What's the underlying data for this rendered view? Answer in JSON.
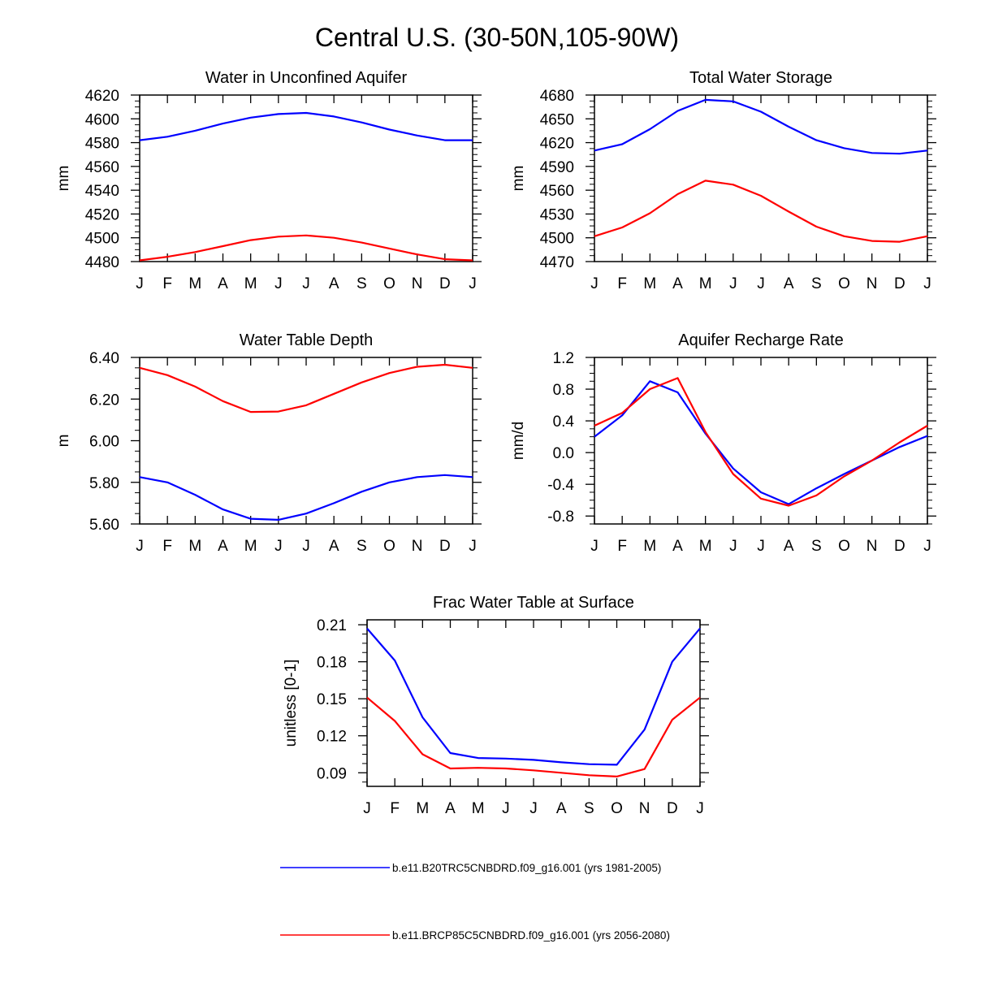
{
  "figure": {
    "title": "Central U.S. (30-50N,105-90W)"
  },
  "chart_data": [
    {
      "type": "line",
      "title": "Water in Unconfined Aquifer",
      "xlabel": "",
      "ylabel": "mm",
      "categories": [
        "J",
        "F",
        "M",
        "A",
        "M",
        "J",
        "J",
        "A",
        "S",
        "O",
        "N",
        "D",
        "J"
      ],
      "yticks": [
        "4480",
        "4500",
        "4520",
        "4540",
        "4560",
        "4580",
        "4600",
        "4620"
      ],
      "ylim": [
        4480,
        4620
      ],
      "series": [
        {
          "name": "b.e11.B20TRC5CNBDRD.f09_g16.001 (yrs 1981-2005)",
          "color": "#0000ff",
          "values": [
            4582,
            4585,
            4590,
            4596,
            4601,
            4604,
            4605,
            4602,
            4597,
            4591,
            4586,
            4582,
            4582
          ]
        },
        {
          "name": "b.e11.BRCP85C5CNBDRD.f09_g16.001 (yrs 2056-2080)",
          "color": "#ff0000",
          "values": [
            4481,
            4484,
            4488,
            4493,
            4498,
            4501,
            4502,
            4500,
            4496,
            4491,
            4486,
            4482,
            4481
          ]
        }
      ]
    },
    {
      "type": "line",
      "title": "Total Water Storage",
      "xlabel": "",
      "ylabel": "mm",
      "categories": [
        "J",
        "F",
        "M",
        "A",
        "M",
        "J",
        "J",
        "A",
        "S",
        "O",
        "N",
        "D",
        "J"
      ],
      "yticks": [
        "4470",
        "4500",
        "4530",
        "4560",
        "4590",
        "4620",
        "4650",
        "4680"
      ],
      "ylim": [
        4470,
        4680
      ],
      "series": [
        {
          "name": "b.e11.B20TRC5CNBDRD.f09_g16.001 (yrs 1981-2005)",
          "color": "#0000ff",
          "values": [
            4610,
            4618,
            4637,
            4660,
            4674,
            4672,
            4659,
            4640,
            4623,
            4613,
            4607,
            4606,
            4610
          ]
        },
        {
          "name": "b.e11.BRCP85C5CNBDRD.f09_g16.001 (yrs 2056-2080)",
          "color": "#ff0000",
          "values": [
            4502,
            4513,
            4531,
            4555,
            4572,
            4567,
            4553,
            4533,
            4514,
            4502,
            4496,
            4495,
            4502
          ]
        }
      ]
    },
    {
      "type": "line",
      "title": "Water Table Depth",
      "xlabel": "",
      "ylabel": "m",
      "categories": [
        "J",
        "F",
        "M",
        "A",
        "M",
        "J",
        "J",
        "A",
        "S",
        "O",
        "N",
        "D",
        "J"
      ],
      "yticks": [
        "5.60",
        "5.80",
        "6.00",
        "6.20",
        "6.40"
      ],
      "ylim": [
        5.6,
        6.4
      ],
      "series": [
        {
          "name": "b.e11.B20TRC5CNBDRD.f09_g16.001 (yrs 1981-2005)",
          "color": "#0000ff",
          "values": [
            5.825,
            5.8,
            5.74,
            5.67,
            5.625,
            5.62,
            5.65,
            5.7,
            5.755,
            5.8,
            5.825,
            5.835,
            5.825
          ]
        },
        {
          "name": "b.e11.BRCP85C5CNBDRD.f09_g16.001 (yrs 2056-2080)",
          "color": "#ff0000",
          "values": [
            6.35,
            6.315,
            6.26,
            6.19,
            6.138,
            6.14,
            6.17,
            6.225,
            6.28,
            6.325,
            6.355,
            6.365,
            6.35
          ]
        }
      ]
    },
    {
      "type": "line",
      "title": "Aquifer Recharge Rate",
      "xlabel": "",
      "ylabel": "mm/d",
      "categories": [
        "J",
        "F",
        "M",
        "A",
        "M",
        "J",
        "J",
        "A",
        "S",
        "O",
        "N",
        "D",
        "J"
      ],
      "yticks": [
        "-0.8",
        "-0.4",
        "0.0",
        "0.4",
        "0.8",
        "1.2"
      ],
      "ylim": [
        -0.9,
        1.2
      ],
      "series": [
        {
          "name": "b.e11.B20TRC5CNBDRD.f09_g16.001 (yrs 1981-2005)",
          "color": "#0000ff",
          "values": [
            0.2,
            0.47,
            0.9,
            0.76,
            0.24,
            -0.2,
            -0.5,
            -0.65,
            -0.45,
            -0.27,
            -0.1,
            0.07,
            0.21
          ]
        },
        {
          "name": "b.e11.BRCP85C5CNBDRD.f09_g16.001 (yrs 2056-2080)",
          "color": "#ff0000",
          "values": [
            0.34,
            0.5,
            0.8,
            0.94,
            0.26,
            -0.27,
            -0.58,
            -0.67,
            -0.54,
            -0.3,
            -0.1,
            0.13,
            0.34
          ]
        }
      ]
    },
    {
      "type": "line",
      "title": "Frac Water Table at Surface",
      "xlabel": "",
      "ylabel": "unitless [0-1]",
      "categories": [
        "J",
        "F",
        "M",
        "A",
        "M",
        "J",
        "J",
        "A",
        "S",
        "O",
        "N",
        "D",
        "J"
      ],
      "yticks": [
        "0.09",
        "0.12",
        "0.15",
        "0.18",
        "0.21"
      ],
      "ylim": [
        0.079,
        0.214
      ],
      "series": [
        {
          "name": "b.e11.B20TRC5CNBDRD.f09_g16.001 (yrs 1981-2005)",
          "color": "#0000ff",
          "values": [
            0.207,
            0.181,
            0.135,
            0.106,
            0.102,
            0.1015,
            0.1005,
            0.0985,
            0.097,
            0.0965,
            0.125,
            0.18,
            0.207
          ]
        },
        {
          "name": "b.e11.BRCP85C5CNBDRD.f09_g16.001 (yrs 2056-2080)",
          "color": "#ff0000",
          "values": [
            0.151,
            0.132,
            0.105,
            0.0935,
            0.094,
            0.0935,
            0.092,
            0.09,
            0.088,
            0.087,
            0.093,
            0.133,
            0.151
          ]
        }
      ]
    }
  ],
  "legend": {
    "entries": [
      {
        "label": "b.e11.B20TRC5CNBDRD.f09_g16.001 (yrs 1981-2005)",
        "color": "#0000ff"
      },
      {
        "label": "b.e11.BRCP85C5CNBDRD.f09_g16.001 (yrs 2056-2080)",
        "color": "#ff0000"
      }
    ]
  }
}
